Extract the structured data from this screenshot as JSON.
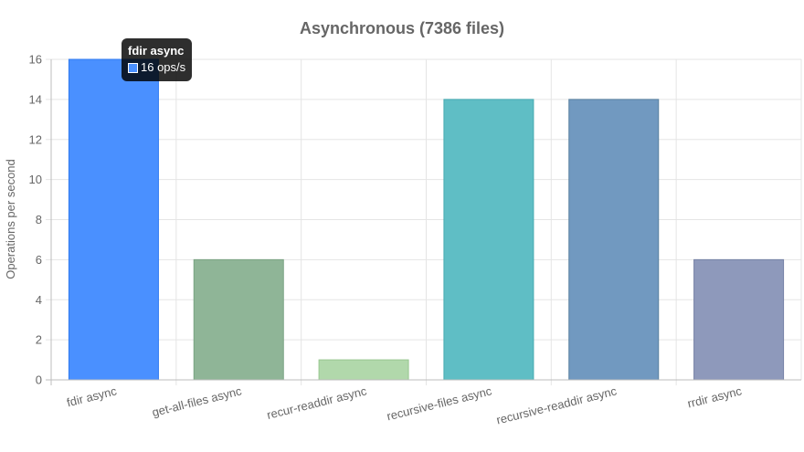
{
  "chart_data": {
    "type": "bar",
    "title": "Asynchronous (7386 files)",
    "ylabel": "Operations per second",
    "xlabel": "",
    "categories": [
      "fdir async",
      "get-all-files async",
      "recur-readdir async",
      "recursive-files async",
      "recursive-readdir async",
      "rrdir async"
    ],
    "values": [
      16,
      6,
      1,
      14,
      14,
      6
    ],
    "colors": [
      "#4a90ff",
      "#8fb597",
      "#b1d8ab",
      "#5fbec5",
      "#7199c0",
      "#8e99bb"
    ],
    "border_colors": [
      "#2f7af0",
      "#79a382",
      "#98c791",
      "#47aab1",
      "#58809f",
      "#7682a6"
    ],
    "ylim": [
      0,
      16
    ],
    "yticks": [
      0,
      2,
      4,
      6,
      8,
      10,
      12,
      14,
      16
    ],
    "grid": true,
    "legend": "none"
  },
  "tooltip": {
    "title": "fdir async",
    "value_text": "16 ops/s",
    "swatch_color": "#4a90ff"
  }
}
